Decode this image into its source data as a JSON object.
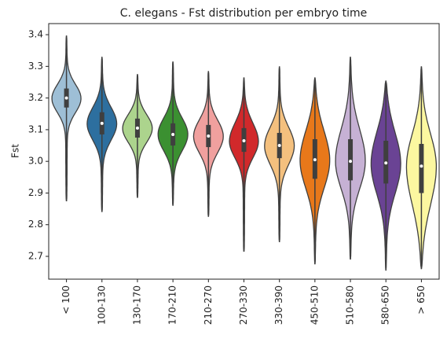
{
  "chart_data": {
    "type": "violin",
    "title": "C. elegans - Fst distribution per embryo time",
    "y_label": "Fst",
    "categories": [
      "< 100",
      "100-130",
      "130-170",
      "170-210",
      "210-270",
      "270-330",
      "330-390",
      "450-510",
      "510-580",
      "580-650",
      "> 650"
    ],
    "colors": [
      "#9ebfd6",
      "#2d6f9f",
      "#acd48d",
      "#3b9031",
      "#f0a09e",
      "#d1292b",
      "#f4c07e",
      "#e8781a",
      "#c6b1d4",
      "#6a4394",
      "#fcf7a0"
    ],
    "stats": [
      {
        "min": 2.874,
        "q1": 3.17,
        "median": 3.2,
        "q3": 3.23,
        "max": 3.397
      },
      {
        "min": 2.84,
        "q1": 3.085,
        "median": 3.12,
        "q3": 3.155,
        "max": 3.33
      },
      {
        "min": 2.885,
        "q1": 3.075,
        "median": 3.105,
        "q3": 3.135,
        "max": 3.275
      },
      {
        "min": 2.86,
        "q1": 3.05,
        "median": 3.085,
        "q3": 3.12,
        "max": 3.315
      },
      {
        "min": 2.825,
        "q1": 3.045,
        "median": 3.08,
        "q3": 3.115,
        "max": 3.285
      },
      {
        "min": 2.715,
        "q1": 3.03,
        "median": 3.065,
        "q3": 3.105,
        "max": 3.265
      },
      {
        "min": 2.745,
        "q1": 3.01,
        "median": 3.05,
        "q3": 3.09,
        "max": 3.3
      },
      {
        "min": 2.675,
        "q1": 2.945,
        "median": 3.005,
        "q3": 3.07,
        "max": 3.265
      },
      {
        "min": 2.69,
        "q1": 2.94,
        "median": 3.0,
        "q3": 3.07,
        "max": 3.33
      },
      {
        "min": 2.655,
        "q1": 2.93,
        "median": 2.995,
        "q3": 3.065,
        "max": 3.255
      },
      {
        "min": 2.66,
        "q1": 2.9,
        "median": 2.985,
        "q3": 3.055,
        "max": 3.3
      }
    ],
    "ylim": [
      2.628,
      3.435
    ],
    "yticks": [
      2.7,
      2.8,
      2.9,
      {
        "value": 3,
        "label": "3.0"
      },
      3.1,
      3.2,
      3.3,
      3.4
    ],
    "grid": false
  }
}
